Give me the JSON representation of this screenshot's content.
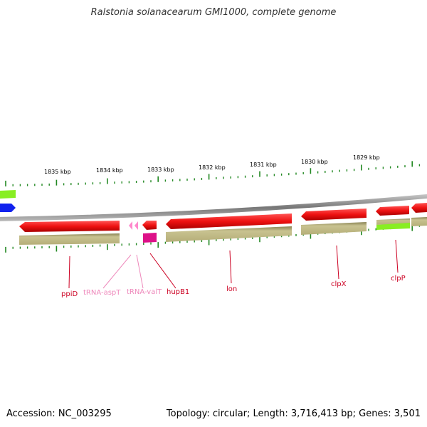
{
  "title": "Ralstonia solanacearum GMI1000, complete genome",
  "accession": "Accession: NC_003295",
  "topology": "Topology: circular; Length: 3,716,413 bp; Genes: 3,501",
  "scale_labels": [
    "1835 kbp",
    "1834 kbp",
    "1833 kbp",
    "1832 kbp",
    "1831 kbp",
    "1830 kbp",
    "1829 kbp"
  ],
  "genes": [
    {
      "label": "ppiD",
      "color": "#cc0022"
    },
    {
      "label": "tRNA-aspT",
      "color": "#ee88bb"
    },
    {
      "label": "tRNA-valT",
      "color": "#ee88bb"
    },
    {
      "label": "hupB1",
      "color": "#cc0022"
    },
    {
      "label": "lon",
      "color": "#cc0022"
    },
    {
      "label": "clpX",
      "color": "#cc0022"
    },
    {
      "label": "clpP",
      "color": "#cc0022"
    }
  ],
  "colors": {
    "cds": "#ee1111",
    "trna": "#ff88cc",
    "khaki": "#bdb888",
    "lime": "#88ee22",
    "magenta": "#dd1188",
    "blue": "#1122ee",
    "tick": "#228822",
    "backbone": "#888888"
  }
}
